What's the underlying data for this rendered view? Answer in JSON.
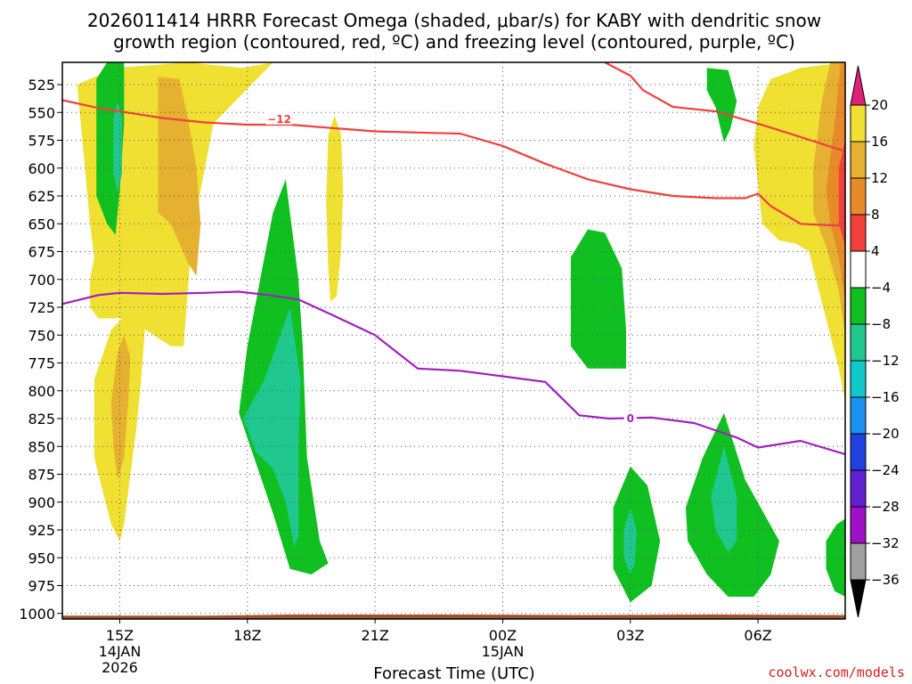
{
  "chart_data": {
    "type": "heatmap",
    "title_lines": [
      "2026011414 HRRR Forecast Omega (shaded, μbar/s) for KABY with dendritic snow",
      "growth region (contoured, red, ºC) and freezing level (contoured, purple, ºC)"
    ],
    "xlabel": "Forecast Time (UTC)",
    "credit": "coolwx.com/models",
    "x_units": "hours since 2026-01-14 14Z",
    "xlim": [
      -0.35,
      18.05
    ],
    "ylim": [
      1005,
      505
    ],
    "y_ticks": [
      525,
      550,
      575,
      600,
      625,
      650,
      675,
      700,
      725,
      750,
      775,
      800,
      825,
      850,
      875,
      900,
      925,
      950,
      975,
      1000
    ],
    "x_ticks": [
      {
        "hour": 1,
        "label": "15Z",
        "date": "14JAN",
        "year": "2026"
      },
      {
        "hour": 4,
        "label": "18Z",
        "date": "",
        "year": ""
      },
      {
        "hour": 7,
        "label": "21Z",
        "date": "",
        "year": ""
      },
      {
        "hour": 10,
        "label": "00Z",
        "date": "15JAN",
        "year": ""
      },
      {
        "hour": 13,
        "label": "03Z",
        "date": "",
        "year": ""
      },
      {
        "hour": 16,
        "label": "06Z",
        "date": "",
        "year": ""
      }
    ],
    "colorbar": {
      "labels": [
        "20",
        "16",
        "12",
        "8",
        "4",
        "−4",
        "−8",
        "−12",
        "−16",
        "−20",
        "−24",
        "−28",
        "−32",
        "−36"
      ],
      "bins": [
        {
          "color": "#f0e032"
        },
        {
          "color": "#e6b030"
        },
        {
          "color": "#e88a2a"
        },
        {
          "color": "#f0403c"
        },
        {
          "color": "#ffffff"
        },
        {
          "color": "#10c020"
        },
        {
          "color": "#20c890"
        },
        {
          "color": "#10c8c8"
        },
        {
          "color": "#1a90f0"
        },
        {
          "color": "#2040e0"
        },
        {
          "color": "#6020d0"
        },
        {
          "color": "#a010c8"
        },
        {
          "color": "#a0a0a0"
        }
      ],
      "top_arrow_color": "#e0207a",
      "bottom_arrow_color": "#000000"
    },
    "omega_regions": [
      {
        "name": "yellow-left-upper",
        "color": "#f0e032",
        "points": [
          [
            0.0,
            525
          ],
          [
            0.9,
            510
          ],
          [
            2.6,
            505
          ],
          [
            3.9,
            510
          ],
          [
            4.6,
            505
          ],
          [
            3.2,
            560
          ],
          [
            2.7,
            660
          ],
          [
            2.5,
            760
          ],
          [
            2.2,
            760
          ],
          [
            1.6,
            745
          ],
          [
            1.0,
            735
          ],
          [
            0.5,
            735
          ],
          [
            0.3,
            725
          ],
          [
            0.3,
            700
          ],
          [
            0.4,
            680
          ],
          [
            0.3,
            650
          ]
        ]
      },
      {
        "name": "orange-left-upper",
        "color": "#e6b030",
        "points": [
          [
            1.9,
            518
          ],
          [
            2.4,
            520
          ],
          [
            2.6,
            555
          ],
          [
            2.8,
            600
          ],
          [
            2.9,
            650
          ],
          [
            2.8,
            697
          ],
          [
            2.6,
            685
          ],
          [
            2.2,
            650
          ],
          [
            1.9,
            640
          ],
          [
            1.9,
            600
          ],
          [
            1.9,
            570
          ]
        ]
      },
      {
        "name": "yellow-left-lower",
        "color": "#f0e032",
        "points": [
          [
            0.4,
            790
          ],
          [
            0.8,
            745
          ],
          [
            1.2,
            730
          ],
          [
            1.6,
            740
          ],
          [
            1.5,
            790
          ],
          [
            1.4,
            830
          ],
          [
            1.1,
            920
          ],
          [
            1.0,
            935
          ],
          [
            0.8,
            920
          ],
          [
            0.4,
            860
          ]
        ]
      },
      {
        "name": "orange-left-lower",
        "color": "#e6b030",
        "points": [
          [
            0.8,
            810
          ],
          [
            0.95,
            765
          ],
          [
            1.1,
            750
          ],
          [
            1.25,
            770
          ],
          [
            1.2,
            810
          ],
          [
            1.1,
            860
          ],
          [
            0.95,
            880
          ],
          [
            0.85,
            850
          ]
        ]
      },
      {
        "name": "yellow-thin-21z",
        "color": "#f0e032",
        "points": [
          [
            5.9,
            570
          ],
          [
            6.05,
            553
          ],
          [
            6.2,
            570
          ],
          [
            6.25,
            620
          ],
          [
            6.2,
            675
          ],
          [
            6.1,
            715
          ],
          [
            5.95,
            720
          ],
          [
            5.9,
            690
          ],
          [
            5.85,
            630
          ]
        ]
      },
      {
        "name": "yellow-right",
        "color": "#f0e032",
        "points": [
          [
            16.0,
            545
          ],
          [
            16.3,
            520
          ],
          [
            17.0,
            510
          ],
          [
            18.05,
            505
          ],
          [
            18.05,
            810
          ],
          [
            17.9,
            780
          ],
          [
            17.5,
            720
          ],
          [
            17.2,
            675
          ],
          [
            16.9,
            668
          ],
          [
            16.5,
            665
          ],
          [
            16.1,
            650
          ],
          [
            16.0,
            615
          ],
          [
            15.9,
            580
          ]
        ]
      },
      {
        "name": "orange-right",
        "color": "#e6b030",
        "points": [
          [
            17.3,
            600
          ],
          [
            17.5,
            540
          ],
          [
            17.7,
            505
          ],
          [
            18.05,
            505
          ],
          [
            18.05,
            750
          ],
          [
            17.9,
            710
          ],
          [
            17.6,
            670
          ],
          [
            17.3,
            640
          ]
        ]
      },
      {
        "name": "dark-orange-right",
        "color": "#e88a2a",
        "points": [
          [
            17.6,
            620
          ],
          [
            17.8,
            560
          ],
          [
            17.95,
            505
          ],
          [
            18.05,
            505
          ],
          [
            18.05,
            720
          ],
          [
            17.9,
            680
          ],
          [
            17.7,
            650
          ]
        ]
      },
      {
        "name": "red-right",
        "color": "#f0403c",
        "points": [
          [
            17.9,
            600
          ],
          [
            18.05,
            575
          ],
          [
            18.05,
            670
          ],
          [
            17.9,
            650
          ]
        ]
      },
      {
        "name": "green-left",
        "color": "#10c020",
        "points": [
          [
            0.45,
            520
          ],
          [
            0.7,
            505
          ],
          [
            1.1,
            505
          ],
          [
            1.1,
            560
          ],
          [
            1.0,
            620
          ],
          [
            0.9,
            660
          ],
          [
            0.7,
            650
          ],
          [
            0.45,
            625
          ],
          [
            0.45,
            580
          ]
        ]
      },
      {
        "name": "teal-left",
        "color": "#20c890",
        "points": [
          [
            0.85,
            555
          ],
          [
            0.95,
            540
          ],
          [
            1.05,
            555
          ],
          [
            1.05,
            605
          ],
          [
            0.95,
            622
          ],
          [
            0.85,
            605
          ]
        ]
      },
      {
        "name": "green-18z",
        "color": "#10c020",
        "points": [
          [
            4.3,
            700
          ],
          [
            4.6,
            640
          ],
          [
            4.9,
            610
          ],
          [
            5.2,
            700
          ],
          [
            5.3,
            760
          ],
          [
            5.4,
            860
          ],
          [
            5.7,
            935
          ],
          [
            5.9,
            955
          ],
          [
            5.5,
            965
          ],
          [
            5.0,
            960
          ],
          [
            4.6,
            910
          ],
          [
            4.2,
            865
          ],
          [
            3.8,
            820
          ],
          [
            4.0,
            760
          ],
          [
            4.2,
            720
          ]
        ]
      },
      {
        "name": "teal-18z",
        "color": "#20c890",
        "points": [
          [
            3.9,
            825
          ],
          [
            4.4,
            790
          ],
          [
            5.0,
            725
          ],
          [
            5.25,
            790
          ],
          [
            5.2,
            850
          ],
          [
            5.2,
            930
          ],
          [
            5.1,
            940
          ],
          [
            4.9,
            900
          ],
          [
            4.6,
            870
          ],
          [
            4.2,
            855
          ]
        ]
      },
      {
        "name": "green-03z-mid",
        "color": "#10c020",
        "points": [
          [
            11.6,
            680
          ],
          [
            12.0,
            655
          ],
          [
            12.4,
            658
          ],
          [
            12.8,
            690
          ],
          [
            12.9,
            745
          ],
          [
            12.9,
            780
          ],
          [
            12.0,
            780
          ],
          [
            11.6,
            760
          ]
        ]
      },
      {
        "name": "green-05z-upper",
        "color": "#10c020",
        "points": [
          [
            14.8,
            510
          ],
          [
            15.3,
            512
          ],
          [
            15.5,
            540
          ],
          [
            15.35,
            565
          ],
          [
            15.2,
            577
          ],
          [
            15.0,
            545
          ],
          [
            14.8,
            530
          ]
        ]
      },
      {
        "name": "green-03z-low",
        "color": "#10c020",
        "points": [
          [
            12.6,
            905
          ],
          [
            13.0,
            868
          ],
          [
            13.4,
            885
          ],
          [
            13.7,
            935
          ],
          [
            13.5,
            975
          ],
          [
            13.0,
            990
          ],
          [
            12.6,
            960
          ]
        ]
      },
      {
        "name": "teal-03z",
        "color": "#20c890",
        "points": [
          [
            12.85,
            925
          ],
          [
            13.0,
            905
          ],
          [
            13.15,
            925
          ],
          [
            13.1,
            955
          ],
          [
            13.0,
            965
          ],
          [
            12.85,
            950
          ]
        ]
      },
      {
        "name": "green-05z-low",
        "color": "#10c020",
        "points": [
          [
            14.3,
            905
          ],
          [
            14.7,
            860
          ],
          [
            15.2,
            820
          ],
          [
            15.7,
            880
          ],
          [
            16.5,
            935
          ],
          [
            16.3,
            965
          ],
          [
            15.9,
            985
          ],
          [
            15.3,
            985
          ],
          [
            14.8,
            965
          ],
          [
            14.35,
            935
          ]
        ]
      },
      {
        "name": "teal-05z",
        "color": "#20c890",
        "points": [
          [
            14.9,
            895
          ],
          [
            15.2,
            850
          ],
          [
            15.5,
            895
          ],
          [
            15.5,
            935
          ],
          [
            15.3,
            945
          ],
          [
            15.0,
            925
          ]
        ]
      },
      {
        "name": "green-right-low",
        "color": "#10c020",
        "points": [
          [
            17.6,
            935
          ],
          [
            17.85,
            920
          ],
          [
            18.05,
            915
          ],
          [
            18.05,
            985
          ],
          [
            17.8,
            980
          ],
          [
            17.6,
            960
          ]
        ]
      },
      {
        "name": "brown-surface",
        "color": "#a0522d",
        "points": [
          [
            -0.35,
            1002
          ],
          [
            3.0,
            1002
          ],
          [
            5.0,
            1001
          ],
          [
            9.0,
            1001
          ],
          [
            12.0,
            1001.5
          ],
          [
            15.0,
            1001
          ],
          [
            18.05,
            1001.5
          ],
          [
            18.05,
            1005
          ],
          [
            -0.35,
            1005
          ]
        ]
      }
    ],
    "contours": [
      {
        "name": "dendritic-growth-minus-12",
        "level": "−12",
        "color": "#f04040",
        "label_at": [
          4.75,
          556
        ],
        "points": [
          [
            -0.35,
            539
          ],
          [
            0.5,
            546
          ],
          [
            1.0,
            549
          ],
          [
            2.0,
            555
          ],
          [
            3.0,
            559
          ],
          [
            4.0,
            561
          ],
          [
            5.0,
            561
          ],
          [
            6.0,
            564
          ],
          [
            7.0,
            567
          ],
          [
            8.0,
            568
          ],
          [
            9.0,
            569
          ],
          [
            10.0,
            580
          ],
          [
            11.0,
            596
          ],
          [
            12.0,
            610
          ],
          [
            13.0,
            619
          ],
          [
            14.0,
            625
          ],
          [
            15.0,
            627
          ],
          [
            15.7,
            627
          ],
          [
            16.0,
            623
          ],
          [
            16.3,
            634
          ],
          [
            17.0,
            650
          ],
          [
            18.05,
            652
          ]
        ]
      },
      {
        "name": "dendritic-growth-minus-12-upper",
        "level": "−12",
        "color": "#f04040",
        "label_at": null,
        "points": [
          [
            12.4,
            505
          ],
          [
            13.0,
            517
          ],
          [
            13.3,
            530
          ],
          [
            14.0,
            545
          ],
          [
            15.0,
            549
          ],
          [
            16.0,
            560
          ],
          [
            17.0,
            572
          ],
          [
            18.05,
            585
          ]
        ]
      },
      {
        "name": "freezing-level-0",
        "level": "0",
        "color": "#a020c0",
        "label_at": [
          13.0,
          825
        ],
        "points": [
          [
            -0.35,
            722
          ],
          [
            0.5,
            714
          ],
          [
            1.0,
            712
          ],
          [
            2.0,
            713
          ],
          [
            3.0,
            712
          ],
          [
            3.8,
            711
          ],
          [
            4.5,
            714
          ],
          [
            5.2,
            718
          ],
          [
            6.0,
            732
          ],
          [
            7.0,
            750
          ],
          [
            8.0,
            780
          ],
          [
            9.0,
            782
          ],
          [
            10.0,
            787
          ],
          [
            11.0,
            792
          ],
          [
            11.8,
            822
          ],
          [
            12.5,
            825
          ],
          [
            13.5,
            824
          ],
          [
            14.5,
            829
          ],
          [
            15.5,
            842
          ],
          [
            16.0,
            851
          ],
          [
            17.0,
            845
          ],
          [
            18.05,
            857
          ]
        ]
      }
    ]
  }
}
